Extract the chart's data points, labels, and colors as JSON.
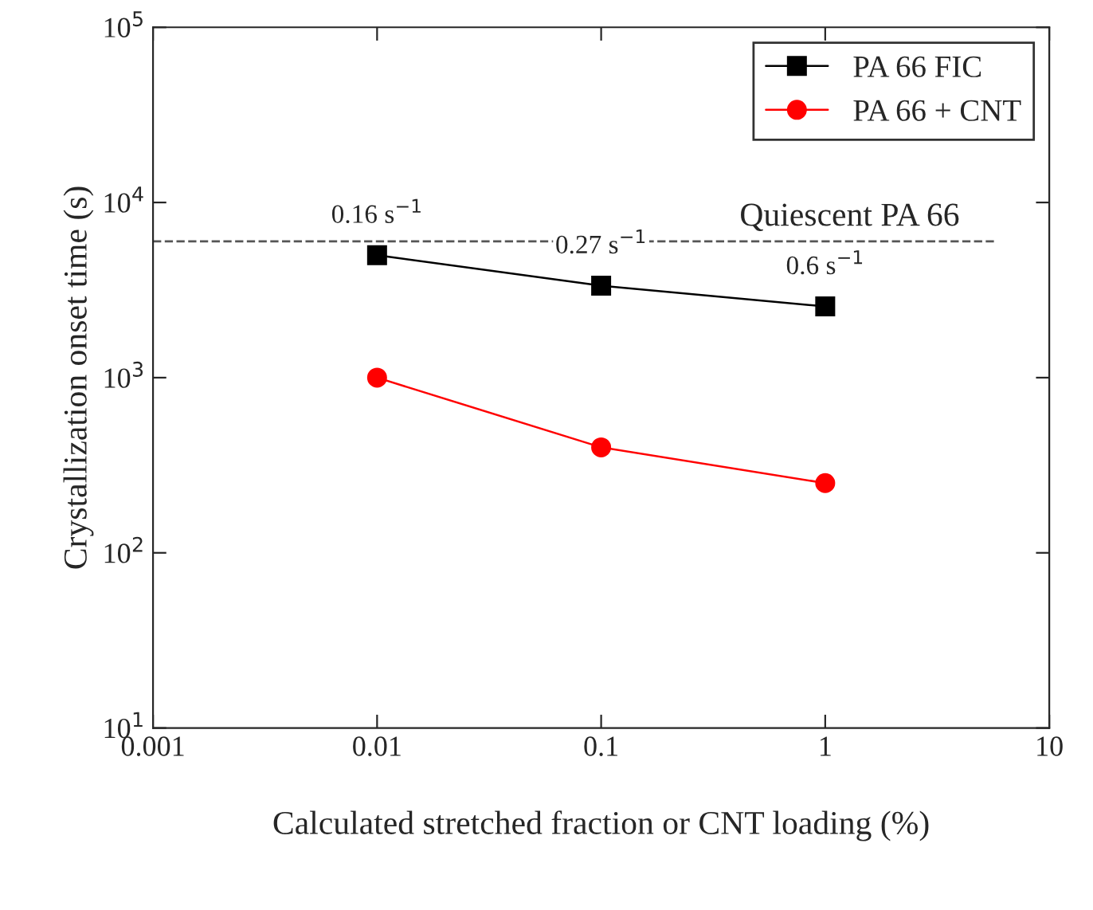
{
  "chart_data": {
    "type": "line",
    "xlabel": "Calculated stretched fraction or CNT loading (%)",
    "ylabel": "Crystallization onset time (s)",
    "log": "xy",
    "x": [
      0.01,
      0.1,
      1
    ],
    "series": [
      {
        "name": "PA 66 FIC",
        "color": "#000000",
        "marker": "square",
        "values": [
          5000,
          3350,
          2550
        ]
      },
      {
        "name": "PA 66 + CNT",
        "color": "#ff0000",
        "marker": "circle",
        "values": [
          1000,
          400,
          250
        ]
      }
    ],
    "xlim": [
      0.001,
      10
    ],
    "ylim": [
      10,
      100000
    ],
    "xticks": [
      0.001,
      0.01,
      0.1,
      1,
      10
    ],
    "yticks": [
      {
        "value": 10,
        "label": "10$^{1}$"
      },
      {
        "value": 100,
        "label": "10$^{2}$"
      },
      {
        "value": 1000,
        "label": "10$^{3}$"
      },
      {
        "value": 10000,
        "label": "10$^{4}$"
      },
      {
        "value": 100000,
        "label": "10$^{5}$"
      }
    ],
    "ref_lines": [
      {
        "axis": "y",
        "value": 6000,
        "label": "Quiescent PA 66",
        "color": "#555555",
        "line_style": "dashed"
      }
    ],
    "annotations": [
      {
        "text": "0.16 s$^{−1}$",
        "x": 0.01,
        "y": 5000
      },
      {
        "text": "0.27 s$^{−1}$",
        "x": 0.1,
        "y": 3350
      },
      {
        "text": "0.6 s$^{−1}$",
        "x": 1,
        "y": 2550
      }
    ],
    "grid": false,
    "legend": "top right"
  }
}
